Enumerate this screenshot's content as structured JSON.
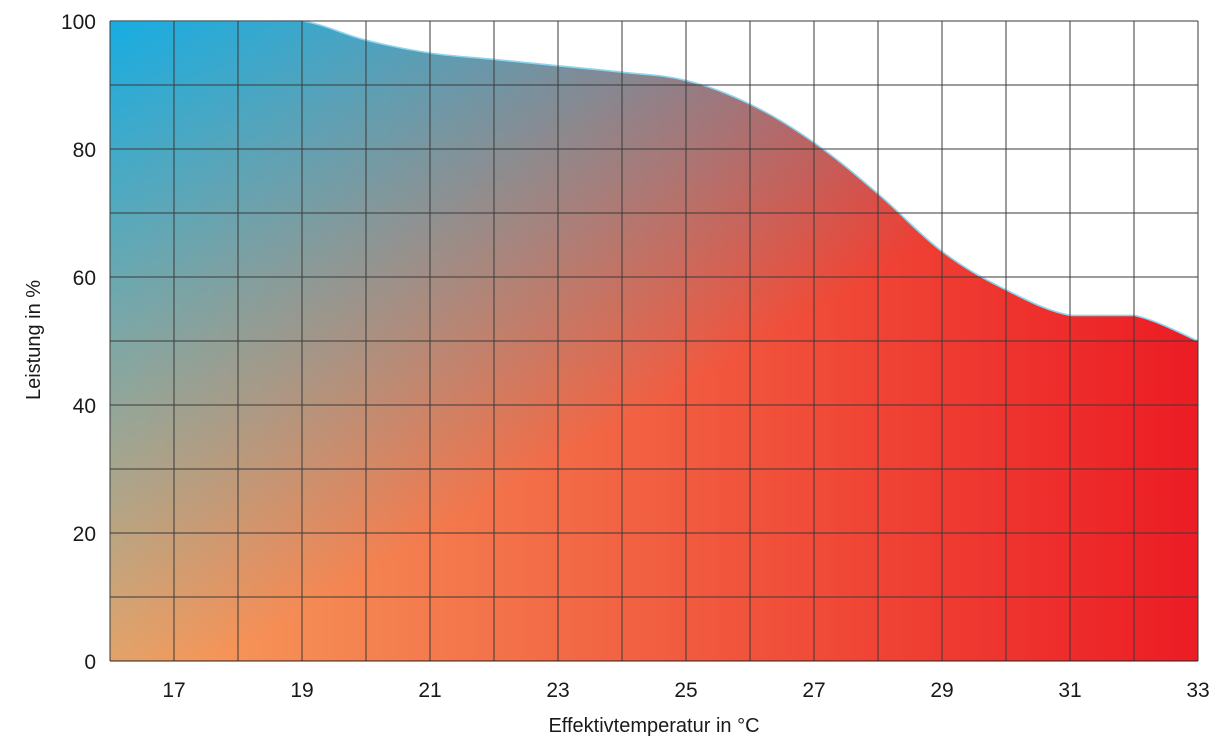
{
  "chart_data": {
    "type": "area",
    "x": [
      16,
      17,
      18,
      19,
      20,
      21,
      22,
      23,
      24,
      25,
      26,
      27,
      28,
      29,
      30,
      31,
      32,
      33
    ],
    "series": [
      {
        "values": [
          100,
          100,
          100,
          100,
          97,
          95,
          94,
          93,
          92,
          90.7,
          87,
          81,
          73,
          64,
          58,
          54,
          54,
          50
        ]
      }
    ],
    "xlabel": "Effektivtemperatur in °C",
    "ylabel": "Leistung in %",
    "xlim": [
      16,
      33
    ],
    "ylim": [
      0,
      100
    ],
    "x_ticks": [
      17,
      19,
      21,
      23,
      25,
      27,
      29,
      31,
      33
    ],
    "y_ticks": [
      0,
      20,
      40,
      60,
      80,
      100
    ],
    "x_grid_step": 1,
    "y_grid_step": 10,
    "grid": true,
    "colors": {
      "top_left": "#17ace2",
      "bottom_left": "#f7a25e",
      "bottom_right": "#ec1c24",
      "mid": "#c97a7a",
      "edge_line": "#8ad6f0",
      "grid": "#3a3a3a"
    }
  }
}
